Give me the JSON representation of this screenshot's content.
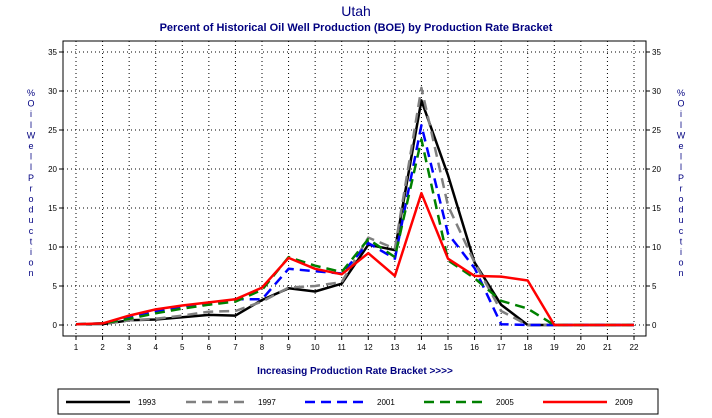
{
  "chart_data": {
    "type": "line",
    "title": "Utah",
    "subtitle": "Percent of Historical Oil Well Production (BOE) by Production Rate Bracket",
    "xlabel": "Increasing Production Rate Bracket >>>>",
    "ylabel": "% Oil Well Production",
    "x": [
      1,
      2,
      3,
      4,
      5,
      6,
      7,
      8,
      9,
      10,
      11,
      12,
      13,
      14,
      15,
      16,
      17,
      18,
      19,
      20,
      21,
      22
    ],
    "ylim": [
      0,
      35
    ],
    "yticks": [
      0,
      5,
      10,
      15,
      20,
      25,
      30,
      35
    ],
    "grid": true,
    "legend_position": "bottom",
    "series": [
      {
        "name": "1993",
        "color": "#000000",
        "dash": "solid",
        "values": [
          0.1,
          0.1,
          0.6,
          0.7,
          1.0,
          1.3,
          1.2,
          3.2,
          4.7,
          4.3,
          5.3,
          10.3,
          9.6,
          28.8,
          19.2,
          8.0,
          2.6,
          0.0,
          0.0,
          0.0,
          0.0,
          0.0
        ]
      },
      {
        "name": "1997",
        "color": "#808080",
        "dash": "dashed",
        "values": [
          0.1,
          0.1,
          0.6,
          0.8,
          1.2,
          1.7,
          1.8,
          3.0,
          4.8,
          5.0,
          5.5,
          11.2,
          9.8,
          30.4,
          15.3,
          8.0,
          1.8,
          0.0,
          0.0,
          0.0,
          0.0,
          0.0
        ]
      },
      {
        "name": "2001",
        "color": "#0000ff",
        "dash": "dashed",
        "values": [
          0.1,
          0.2,
          0.9,
          1.7,
          2.4,
          2.7,
          3.3,
          3.3,
          7.2,
          6.9,
          6.6,
          10.5,
          8.5,
          25.6,
          11.7,
          7.3,
          0.1,
          0.0,
          0.0,
          0.0,
          0.0,
          0.0
        ]
      },
      {
        "name": "2005",
        "color": "#008000",
        "dash": "dashed",
        "values": [
          0.1,
          0.2,
          0.8,
          1.5,
          2.1,
          2.6,
          3.0,
          4.5,
          8.7,
          7.6,
          6.8,
          11.0,
          8.7,
          23.8,
          8.3,
          6.0,
          3.1,
          2.1,
          0.0,
          0.0,
          0.0,
          0.0
        ]
      },
      {
        "name": "2009",
        "color": "#ff0000",
        "dash": "solid",
        "values": [
          0.1,
          0.2,
          1.2,
          2.0,
          2.5,
          2.9,
          3.3,
          4.8,
          8.6,
          7.2,
          6.5,
          9.2,
          6.3,
          16.9,
          8.5,
          6.3,
          6.2,
          5.7,
          0.0,
          0.0,
          0.0,
          0.0
        ]
      }
    ]
  }
}
